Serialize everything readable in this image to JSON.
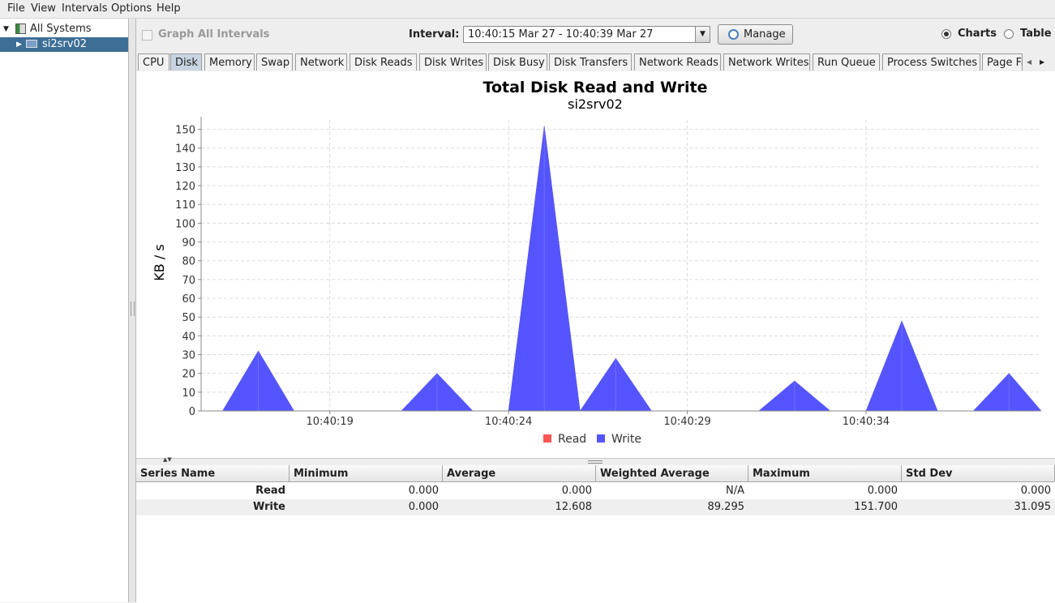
{
  "menu": {
    "file": "File",
    "view": "View",
    "intervals": "Intervals",
    "options": "Options",
    "help": "Help"
  },
  "tree": {
    "root": "All Systems",
    "child": "si2srv02"
  },
  "toolbar": {
    "graph_all": "Graph All Intervals",
    "interval_label": "Interval:",
    "interval_value": "10:40:15 Mar 27 - 10:40:39 Mar 27",
    "manage": "Manage",
    "charts": "Charts",
    "table": "Table"
  },
  "tabs": [
    "CPU",
    "Disk",
    "Memory",
    "Swap",
    "Network",
    "Disk Reads",
    "Disk Writes",
    "Disk Busy",
    "Disk Transfers",
    "Network Reads",
    "Network Writes",
    "Run Queue",
    "Process Switches",
    "Page Fa"
  ],
  "chart_data": {
    "type": "area",
    "title": "Total Disk Read and Write",
    "subtitle": "si2srv02",
    "ylabel": "KB / s",
    "xlabel": "",
    "ylim": [
      0,
      155
    ],
    "yticks": [
      0,
      10,
      20,
      30,
      40,
      50,
      60,
      70,
      80,
      90,
      100,
      110,
      120,
      130,
      140,
      150
    ],
    "xticks": [
      "10:40:19",
      "10:40:24",
      "10:40:29",
      "10:40:34"
    ],
    "xlim": [
      15.4,
      38.9
    ],
    "xtick_pos": [
      19,
      24,
      29,
      34
    ],
    "series": [
      {
        "name": "Read",
        "color": "#ff5555",
        "x": [
          15.4,
          38.9
        ],
        "values": [
          0,
          0
        ]
      },
      {
        "name": "Write",
        "color": "#5555ff",
        "x": [
          15.4,
          16,
          17,
          18,
          19,
          20,
          21,
          22,
          23,
          24,
          25,
          26,
          27,
          28,
          29,
          30,
          31,
          32,
          33,
          34,
          35,
          36,
          37,
          38,
          38.9
        ],
        "values": [
          0,
          0,
          32,
          0,
          0,
          0,
          0,
          20,
          0,
          0,
          151.7,
          0,
          28,
          0,
          0,
          0,
          0,
          16,
          0,
          0,
          48,
          0,
          0,
          20,
          0
        ]
      }
    ],
    "legend": [
      "Read",
      "Write"
    ]
  },
  "stats": {
    "headers": [
      "Series Name",
      "Minimum",
      "Average",
      "Weighted Average",
      "Maximum",
      "Std Dev"
    ],
    "rows": [
      [
        "Read",
        "0.000",
        "0.000",
        "N/A",
        "0.000",
        "0.000"
      ],
      [
        "Write",
        "0.000",
        "12.608",
        "89.295",
        "151.700",
        "31.095"
      ]
    ]
  }
}
